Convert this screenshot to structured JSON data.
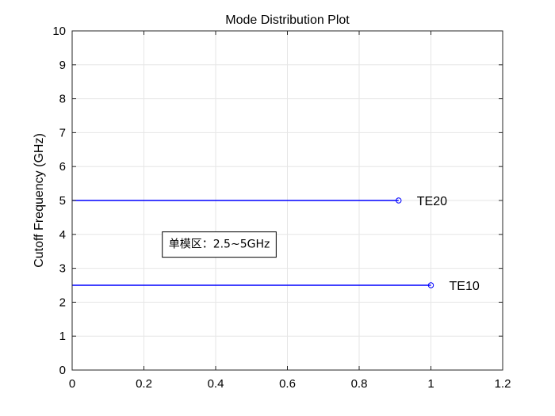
{
  "chart_data": {
    "type": "line",
    "title": "Mode Distribution Plot",
    "xlabel": "",
    "ylabel": "Cutoff Frequency (GHz)",
    "xlim": [
      0,
      1.2
    ],
    "ylim": [
      0,
      10
    ],
    "xticks": [
      "0",
      "0.2",
      "0.4",
      "0.6",
      "0.8",
      "1",
      "1.2"
    ],
    "yticks": [
      "0",
      "1",
      "2",
      "3",
      "4",
      "5",
      "6",
      "7",
      "8",
      "9",
      "10"
    ],
    "grid": true,
    "series": [
      {
        "label": "TE10",
        "x": [
          0,
          1
        ],
        "y": [
          2.5,
          2.5
        ],
        "color": "#0000ff",
        "marker": "circle"
      },
      {
        "label": "TE20",
        "x": [
          0,
          0.91
        ],
        "y": [
          5,
          5
        ],
        "color": "#0000ff",
        "marker": "circle"
      }
    ],
    "annotation": {
      "text": "单模区：2.5~5GHz",
      "x": 0.41,
      "y": 3.7
    }
  }
}
